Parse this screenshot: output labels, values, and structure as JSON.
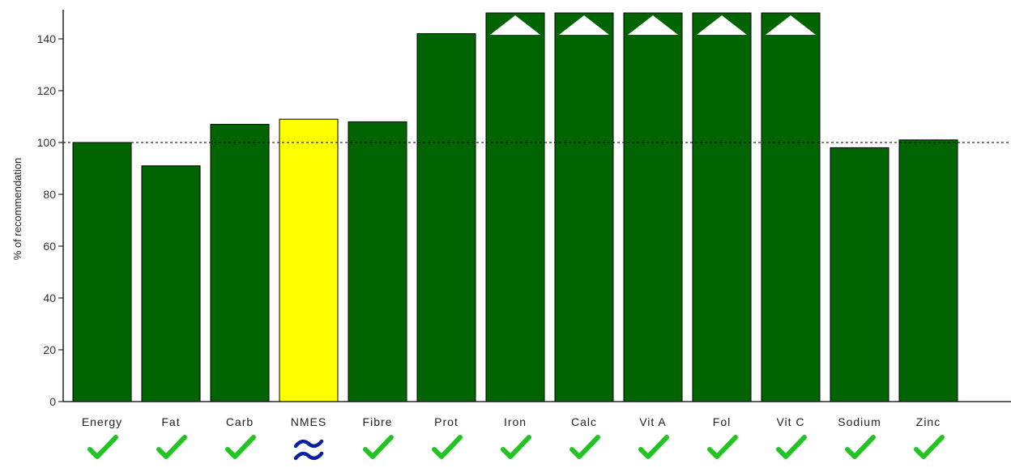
{
  "chart_data": {
    "type": "bar",
    "title": "",
    "xlabel": "",
    "ylabel": "% of recommendation",
    "ylim": [
      0,
      150
    ],
    "yticks": [
      0,
      20,
      40,
      60,
      80,
      100,
      120,
      140
    ],
    "reference_line": 100,
    "grid": false,
    "categories": [
      "Energy",
      "Fat",
      "Carb",
      "NMES",
      "Fibre",
      "Prot",
      "Iron",
      "Calc",
      "Vit A",
      "Fol",
      "Vit C",
      "Sodium",
      "Zinc"
    ],
    "values": [
      100,
      91,
      107,
      109,
      108,
      142,
      150,
      150,
      150,
      150,
      150,
      98,
      101
    ],
    "exceeds_axis": [
      false,
      false,
      false,
      false,
      false,
      false,
      true,
      true,
      true,
      true,
      true,
      false,
      false
    ],
    "bar_colors": [
      "#006400",
      "#006400",
      "#006400",
      "#ffff00",
      "#006400",
      "#006400",
      "#006400",
      "#006400",
      "#006400",
      "#006400",
      "#006400",
      "#006400",
      "#006400"
    ],
    "status_icons": [
      "check-icon",
      "check-icon",
      "check-icon",
      "approx-icon",
      "check-icon",
      "check-icon",
      "check-icon",
      "check-icon",
      "check-icon",
      "check-icon",
      "check-icon",
      "check-icon",
      "check-icon"
    ],
    "colors": {
      "bar": "#006400",
      "highlight": "#ffff00",
      "check": "#22c422",
      "approx": "#0a1fa0",
      "reference": "#000000"
    }
  }
}
